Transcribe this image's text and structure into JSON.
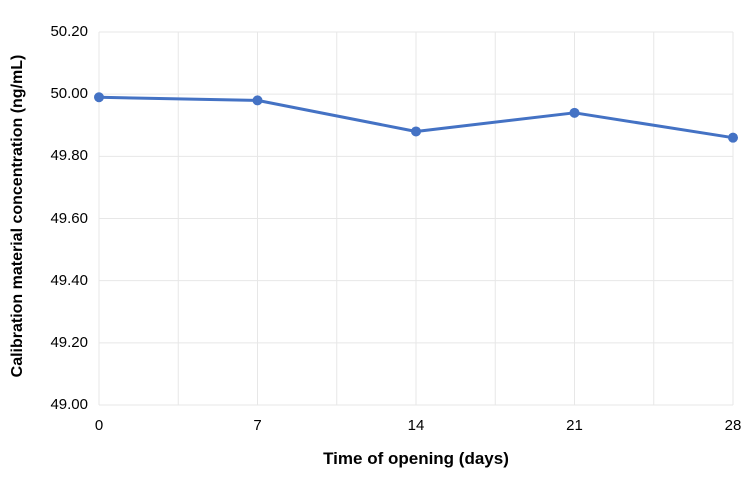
{
  "chart_data": {
    "type": "line",
    "title": "",
    "xlabel": "Time of opening (days)",
    "ylabel": "Calibration material concentration (ng/mL)",
    "x": [
      0,
      7,
      14,
      21,
      28
    ],
    "series": [
      {
        "name": "Calibration material concentration",
        "values": [
          49.99,
          49.98,
          49.88,
          49.94,
          49.86
        ]
      }
    ],
    "xticks": [
      0,
      7,
      14,
      21,
      28
    ],
    "xlim": [
      0,
      28
    ],
    "ylim": [
      49.0,
      50.2
    ],
    "ytick_step": 0.2,
    "ytick_decimals": 2,
    "x_gridline_step": 3.5,
    "grid": true,
    "legend_position": "none",
    "line_color": "#4472C4",
    "marker_color": "#4472C4",
    "grid_color": "#e7e7e7",
    "background_color": "#ffffff",
    "text_color": "#000000"
  }
}
